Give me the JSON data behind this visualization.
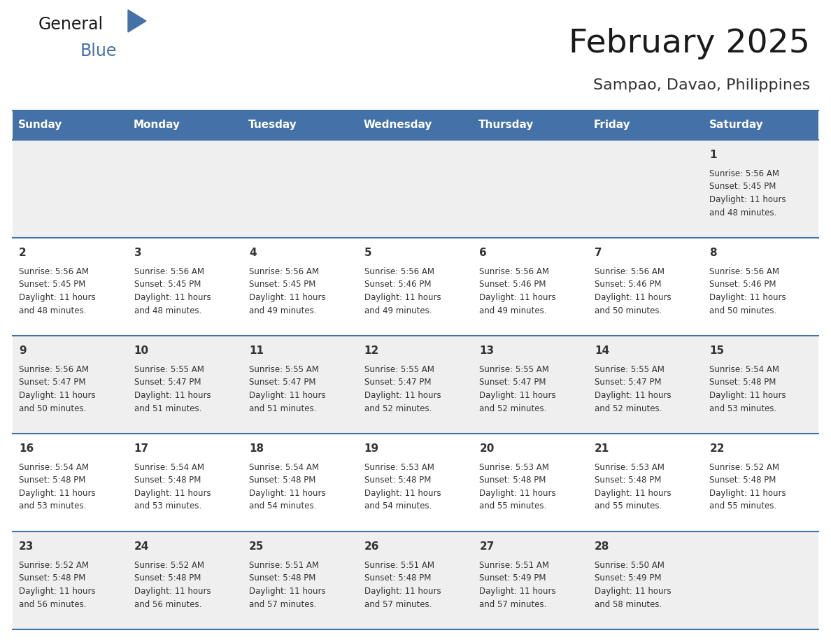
{
  "title": "February 2025",
  "subtitle": "Sampao, Davao, Philippines",
  "header_color": "#4472A8",
  "header_text_color": "#FFFFFF",
  "day_names": [
    "Sunday",
    "Monday",
    "Tuesday",
    "Wednesday",
    "Thursday",
    "Friday",
    "Saturday"
  ],
  "background_color": "#FFFFFF",
  "cell_bg_odd": "#EFEFEF",
  "cell_bg_even": "#FFFFFF",
  "border_color": "#4472A8",
  "text_color": "#333333",
  "days": [
    {
      "day": 1,
      "col": 6,
      "row": 0,
      "sunrise": "5:56 AM",
      "sunset": "5:45 PM",
      "daylight": "11 hours\nand 48 minutes."
    },
    {
      "day": 2,
      "col": 0,
      "row": 1,
      "sunrise": "5:56 AM",
      "sunset": "5:45 PM",
      "daylight": "11 hours\nand 48 minutes."
    },
    {
      "day": 3,
      "col": 1,
      "row": 1,
      "sunrise": "5:56 AM",
      "sunset": "5:45 PM",
      "daylight": "11 hours\nand 48 minutes."
    },
    {
      "day": 4,
      "col": 2,
      "row": 1,
      "sunrise": "5:56 AM",
      "sunset": "5:45 PM",
      "daylight": "11 hours\nand 49 minutes."
    },
    {
      "day": 5,
      "col": 3,
      "row": 1,
      "sunrise": "5:56 AM",
      "sunset": "5:46 PM",
      "daylight": "11 hours\nand 49 minutes."
    },
    {
      "day": 6,
      "col": 4,
      "row": 1,
      "sunrise": "5:56 AM",
      "sunset": "5:46 PM",
      "daylight": "11 hours\nand 49 minutes."
    },
    {
      "day": 7,
      "col": 5,
      "row": 1,
      "sunrise": "5:56 AM",
      "sunset": "5:46 PM",
      "daylight": "11 hours\nand 50 minutes."
    },
    {
      "day": 8,
      "col": 6,
      "row": 1,
      "sunrise": "5:56 AM",
      "sunset": "5:46 PM",
      "daylight": "11 hours\nand 50 minutes."
    },
    {
      "day": 9,
      "col": 0,
      "row": 2,
      "sunrise": "5:56 AM",
      "sunset": "5:47 PM",
      "daylight": "11 hours\nand 50 minutes."
    },
    {
      "day": 10,
      "col": 1,
      "row": 2,
      "sunrise": "5:55 AM",
      "sunset": "5:47 PM",
      "daylight": "11 hours\nand 51 minutes."
    },
    {
      "day": 11,
      "col": 2,
      "row": 2,
      "sunrise": "5:55 AM",
      "sunset": "5:47 PM",
      "daylight": "11 hours\nand 51 minutes."
    },
    {
      "day": 12,
      "col": 3,
      "row": 2,
      "sunrise": "5:55 AM",
      "sunset": "5:47 PM",
      "daylight": "11 hours\nand 52 minutes."
    },
    {
      "day": 13,
      "col": 4,
      "row": 2,
      "sunrise": "5:55 AM",
      "sunset": "5:47 PM",
      "daylight": "11 hours\nand 52 minutes."
    },
    {
      "day": 14,
      "col": 5,
      "row": 2,
      "sunrise": "5:55 AM",
      "sunset": "5:47 PM",
      "daylight": "11 hours\nand 52 minutes."
    },
    {
      "day": 15,
      "col": 6,
      "row": 2,
      "sunrise": "5:54 AM",
      "sunset": "5:48 PM",
      "daylight": "11 hours\nand 53 minutes."
    },
    {
      "day": 16,
      "col": 0,
      "row": 3,
      "sunrise": "5:54 AM",
      "sunset": "5:48 PM",
      "daylight": "11 hours\nand 53 minutes."
    },
    {
      "day": 17,
      "col": 1,
      "row": 3,
      "sunrise": "5:54 AM",
      "sunset": "5:48 PM",
      "daylight": "11 hours\nand 53 minutes."
    },
    {
      "day": 18,
      "col": 2,
      "row": 3,
      "sunrise": "5:54 AM",
      "sunset": "5:48 PM",
      "daylight": "11 hours\nand 54 minutes."
    },
    {
      "day": 19,
      "col": 3,
      "row": 3,
      "sunrise": "5:53 AM",
      "sunset": "5:48 PM",
      "daylight": "11 hours\nand 54 minutes."
    },
    {
      "day": 20,
      "col": 4,
      "row": 3,
      "sunrise": "5:53 AM",
      "sunset": "5:48 PM",
      "daylight": "11 hours\nand 55 minutes."
    },
    {
      "day": 21,
      "col": 5,
      "row": 3,
      "sunrise": "5:53 AM",
      "sunset": "5:48 PM",
      "daylight": "11 hours\nand 55 minutes."
    },
    {
      "day": 22,
      "col": 6,
      "row": 3,
      "sunrise": "5:52 AM",
      "sunset": "5:48 PM",
      "daylight": "11 hours\nand 55 minutes."
    },
    {
      "day": 23,
      "col": 0,
      "row": 4,
      "sunrise": "5:52 AM",
      "sunset": "5:48 PM",
      "daylight": "11 hours\nand 56 minutes."
    },
    {
      "day": 24,
      "col": 1,
      "row": 4,
      "sunrise": "5:52 AM",
      "sunset": "5:48 PM",
      "daylight": "11 hours\nand 56 minutes."
    },
    {
      "day": 25,
      "col": 2,
      "row": 4,
      "sunrise": "5:51 AM",
      "sunset": "5:48 PM",
      "daylight": "11 hours\nand 57 minutes."
    },
    {
      "day": 26,
      "col": 3,
      "row": 4,
      "sunrise": "5:51 AM",
      "sunset": "5:48 PM",
      "daylight": "11 hours\nand 57 minutes."
    },
    {
      "day": 27,
      "col": 4,
      "row": 4,
      "sunrise": "5:51 AM",
      "sunset": "5:49 PM",
      "daylight": "11 hours\nand 57 minutes."
    },
    {
      "day": 28,
      "col": 5,
      "row": 4,
      "sunrise": "5:50 AM",
      "sunset": "5:49 PM",
      "daylight": "11 hours\nand 58 minutes."
    }
  ],
  "logo_text1": "General",
  "logo_text2": "Blue",
  "logo_triangle_color": "#4472A8"
}
